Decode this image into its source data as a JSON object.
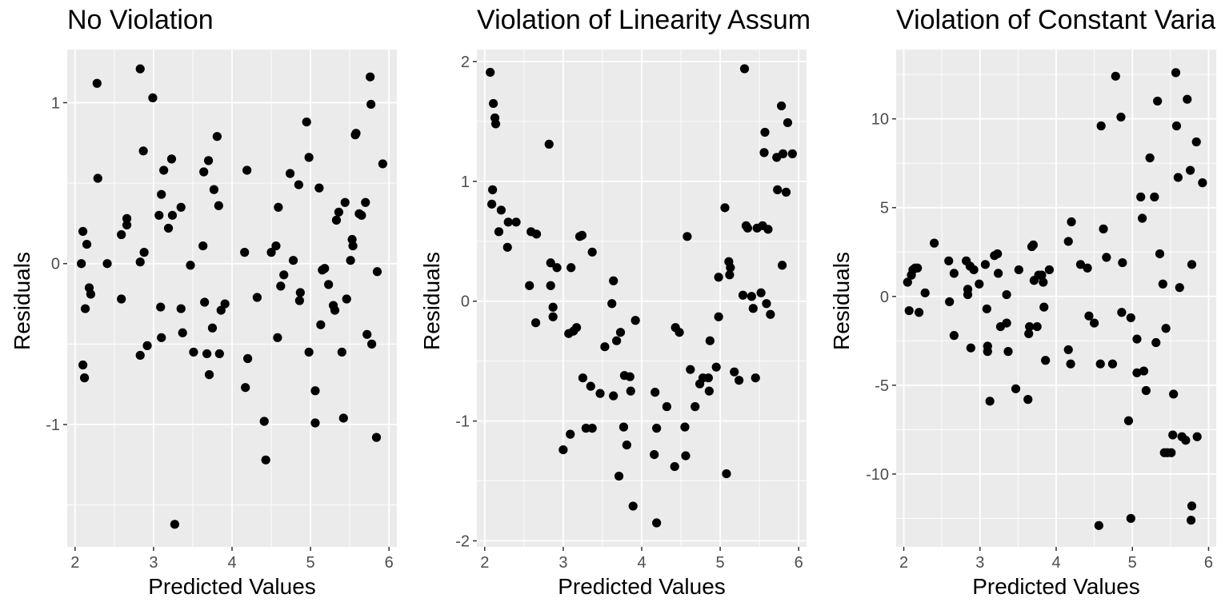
{
  "chart_data": [
    {
      "type": "scatter",
      "title": "No Violation",
      "xlabel": "Predicted Values",
      "ylabel": "Residuals",
      "xlim": [
        1.9,
        6.1
      ],
      "ylim": [
        -1.76,
        1.33
      ],
      "x_ticks": [
        2,
        3,
        4,
        5,
        6
      ],
      "y_ticks": [
        -1,
        0,
        1
      ],
      "grid": true,
      "points": [
        [
          2.08,
          0.0
        ],
        [
          2.1,
          0.2
        ],
        [
          2.1,
          -0.63
        ],
        [
          2.12,
          -0.71
        ],
        [
          2.13,
          -0.28
        ],
        [
          2.15,
          0.12
        ],
        [
          2.18,
          -0.15
        ],
        [
          2.2,
          -0.19
        ],
        [
          2.28,
          1.12
        ],
        [
          2.29,
          0.53
        ],
        [
          2.41,
          0.0
        ],
        [
          2.59,
          0.18
        ],
        [
          2.59,
          -0.22
        ],
        [
          2.66,
          0.28
        ],
        [
          2.66,
          0.24
        ],
        [
          2.83,
          1.21
        ],
        [
          2.83,
          0.01
        ],
        [
          2.83,
          -0.57
        ],
        [
          2.87,
          0.7
        ],
        [
          2.88,
          0.07
        ],
        [
          2.92,
          -0.51
        ],
        [
          2.99,
          1.03
        ],
        [
          3.07,
          0.3
        ],
        [
          3.09,
          -0.27
        ],
        [
          3.1,
          0.43
        ],
        [
          3.1,
          -0.46
        ],
        [
          3.13,
          0.58
        ],
        [
          3.19,
          0.22
        ],
        [
          3.23,
          0.65
        ],
        [
          3.24,
          0.3
        ],
        [
          3.27,
          -1.62
        ],
        [
          3.35,
          0.35
        ],
        [
          3.35,
          -0.28
        ],
        [
          3.37,
          -0.43
        ],
        [
          3.47,
          -0.01
        ],
        [
          3.51,
          -0.55
        ],
        [
          3.63,
          0.11
        ],
        [
          3.64,
          0.57
        ],
        [
          3.65,
          -0.24
        ],
        [
          3.68,
          -0.56
        ],
        [
          3.7,
          0.64
        ],
        [
          3.71,
          -0.69
        ],
        [
          3.75,
          -0.4
        ],
        [
          3.77,
          0.46
        ],
        [
          3.81,
          0.79
        ],
        [
          3.83,
          0.36
        ],
        [
          3.84,
          -0.56
        ],
        [
          3.86,
          -0.29
        ],
        [
          3.91,
          -0.25
        ],
        [
          4.16,
          0.07
        ],
        [
          4.17,
          -0.77
        ],
        [
          4.19,
          0.58
        ],
        [
          4.2,
          -0.59
        ],
        [
          4.32,
          -0.21
        ],
        [
          4.41,
          -0.98
        ],
        [
          4.43,
          -1.22
        ],
        [
          4.5,
          0.07
        ],
        [
          4.56,
          0.11
        ],
        [
          4.58,
          -0.46
        ],
        [
          4.59,
          0.35
        ],
        [
          4.62,
          -0.14
        ],
        [
          4.66,
          -0.07
        ],
        [
          4.74,
          0.56
        ],
        [
          4.78,
          0.02
        ],
        [
          4.85,
          0.49
        ],
        [
          4.86,
          -0.23
        ],
        [
          4.87,
          -0.18
        ],
        [
          4.95,
          0.88
        ],
        [
          4.98,
          0.66
        ],
        [
          4.98,
          -0.55
        ],
        [
          5.06,
          -0.79
        ],
        [
          5.06,
          -0.99
        ],
        [
          5.11,
          0.47
        ],
        [
          5.13,
          -0.38
        ],
        [
          5.15,
          -0.04
        ],
        [
          5.18,
          -0.03
        ],
        [
          5.23,
          -0.13
        ],
        [
          5.29,
          -0.26
        ],
        [
          5.31,
          -0.29
        ],
        [
          5.33,
          0.27
        ],
        [
          5.36,
          0.32
        ],
        [
          5.4,
          -0.55
        ],
        [
          5.42,
          -0.96
        ],
        [
          5.44,
          0.38
        ],
        [
          5.46,
          -0.22
        ],
        [
          5.51,
          0.02
        ],
        [
          5.53,
          0.15
        ],
        [
          5.54,
          0.11
        ],
        [
          5.57,
          0.8
        ],
        [
          5.58,
          0.81
        ],
        [
          5.62,
          0.31
        ],
        [
          5.65,
          0.3
        ],
        [
          5.7,
          0.38
        ],
        [
          5.72,
          -0.44
        ],
        [
          5.76,
          1.16
        ],
        [
          5.77,
          0.99
        ],
        [
          5.78,
          -0.5
        ],
        [
          5.84,
          -1.08
        ],
        [
          5.85,
          -0.05
        ],
        [
          5.92,
          0.62
        ]
      ]
    },
    {
      "type": "scatter",
      "title": "Violation of Linearity Assum",
      "xlabel": "Predicted Values",
      "ylabel": "Residuals",
      "xlim": [
        1.9,
        6.1
      ],
      "ylim": [
        -2.05,
        2.1
      ],
      "x_ticks": [
        2,
        3,
        4,
        5,
        6
      ],
      "y_ticks": [
        -2,
        -1,
        0,
        1,
        2
      ],
      "grid": true,
      "points": [
        [
          2.07,
          1.91
        ],
        [
          2.09,
          0.81
        ],
        [
          2.1,
          0.93
        ],
        [
          2.11,
          1.65
        ],
        [
          2.13,
          1.53
        ],
        [
          2.14,
          1.48
        ],
        [
          2.18,
          0.58
        ],
        [
          2.21,
          0.76
        ],
        [
          2.29,
          0.45
        ],
        [
          2.3,
          0.66
        ],
        [
          2.4,
          0.66
        ],
        [
          2.57,
          0.13
        ],
        [
          2.59,
          0.58
        ],
        [
          2.65,
          -0.18
        ],
        [
          2.66,
          0.56
        ],
        [
          2.82,
          1.31
        ],
        [
          2.84,
          0.32
        ],
        [
          2.84,
          0.13
        ],
        [
          2.87,
          -0.05
        ],
        [
          2.87,
          -0.13
        ],
        [
          2.92,
          0.28
        ],
        [
          3.0,
          -1.24
        ],
        [
          3.07,
          -0.27
        ],
        [
          3.09,
          -1.11
        ],
        [
          3.1,
          0.28
        ],
        [
          3.13,
          -0.25
        ],
        [
          3.17,
          -0.22
        ],
        [
          3.21,
          0.54
        ],
        [
          3.24,
          0.55
        ],
        [
          3.25,
          -0.64
        ],
        [
          3.29,
          -1.06
        ],
        [
          3.35,
          -0.71
        ],
        [
          3.37,
          0.41
        ],
        [
          3.37,
          -1.06
        ],
        [
          3.47,
          -0.77
        ],
        [
          3.53,
          -0.38
        ],
        [
          3.62,
          -0.02
        ],
        [
          3.64,
          0.17
        ],
        [
          3.64,
          -0.79
        ],
        [
          3.68,
          -0.33
        ],
        [
          3.71,
          -1.46
        ],
        [
          3.73,
          -0.26
        ],
        [
          3.77,
          -1.05
        ],
        [
          3.78,
          -0.62
        ],
        [
          3.81,
          -1.2
        ],
        [
          3.85,
          -0.63
        ],
        [
          3.86,
          -0.75
        ],
        [
          3.89,
          -1.71
        ],
        [
          3.92,
          -0.16
        ],
        [
          4.16,
          -1.28
        ],
        [
          4.17,
          -0.76
        ],
        [
          4.19,
          -1.85
        ],
        [
          4.19,
          -1.06
        ],
        [
          4.32,
          -0.88
        ],
        [
          4.42,
          -1.38
        ],
        [
          4.43,
          -0.22
        ],
        [
          4.48,
          -0.26
        ],
        [
          4.55,
          -1.05
        ],
        [
          4.56,
          -1.29
        ],
        [
          4.58,
          0.54
        ],
        [
          4.62,
          -0.57
        ],
        [
          4.68,
          -0.88
        ],
        [
          4.74,
          -0.69
        ],
        [
          4.78,
          -0.64
        ],
        [
          4.85,
          -0.64
        ],
        [
          4.86,
          -0.75
        ],
        [
          4.87,
          -0.33
        ],
        [
          4.95,
          -0.55
        ],
        [
          4.98,
          0.2
        ],
        [
          4.98,
          -0.13
        ],
        [
          5.06,
          0.78
        ],
        [
          5.08,
          -1.44
        ],
        [
          5.11,
          0.33
        ],
        [
          5.12,
          0.22
        ],
        [
          5.13,
          0.28
        ],
        [
          5.18,
          -0.59
        ],
        [
          5.24,
          -0.66
        ],
        [
          5.29,
          0.05
        ],
        [
          5.31,
          1.94
        ],
        [
          5.33,
          0.63
        ],
        [
          5.35,
          0.61
        ],
        [
          5.4,
          0.04
        ],
        [
          5.42,
          -0.06
        ],
        [
          5.45,
          -0.64
        ],
        [
          5.47,
          0.61
        ],
        [
          5.52,
          0.07
        ],
        [
          5.54,
          0.63
        ],
        [
          5.56,
          1.24
        ],
        [
          5.57,
          1.41
        ],
        [
          5.59,
          -0.02
        ],
        [
          5.61,
          0.6
        ],
        [
          5.64,
          -0.11
        ],
        [
          5.72,
          1.2
        ],
        [
          5.73,
          0.93
        ],
        [
          5.78,
          1.63
        ],
        [
          5.79,
          0.3
        ],
        [
          5.8,
          1.23
        ],
        [
          5.84,
          0.91
        ],
        [
          5.86,
          1.49
        ],
        [
          5.92,
          1.23
        ]
      ]
    },
    {
      "type": "scatter",
      "title": "Violation of Constant Varia",
      "xlabel": "Predicted Values",
      "ylabel": "Residuals",
      "xlim": [
        1.9,
        6.1
      ],
      "ylim": [
        -14.1,
        13.9
      ],
      "x_ticks": [
        2,
        3,
        4,
        5,
        6
      ],
      "y_ticks": [
        -10,
        -5,
        0,
        5,
        10
      ],
      "grid": true,
      "points": [
        [
          2.05,
          0.8
        ],
        [
          2.07,
          -0.8
        ],
        [
          2.1,
          1.2
        ],
        [
          2.12,
          1.5
        ],
        [
          2.15,
          1.6
        ],
        [
          2.18,
          1.6
        ],
        [
          2.2,
          -0.9
        ],
        [
          2.28,
          0.2
        ],
        [
          2.4,
          3.0
        ],
        [
          2.59,
          2.0
        ],
        [
          2.6,
          -0.3
        ],
        [
          2.66,
          1.3
        ],
        [
          2.66,
          -2.2
        ],
        [
          2.82,
          2.0
        ],
        [
          2.84,
          0.1
        ],
        [
          2.84,
          0.4
        ],
        [
          2.87,
          1.7
        ],
        [
          2.88,
          -2.9
        ],
        [
          2.92,
          1.5
        ],
        [
          2.99,
          0.7
        ],
        [
          3.07,
          1.8
        ],
        [
          3.09,
          -0.7
        ],
        [
          3.1,
          -3.1
        ],
        [
          3.1,
          -2.8
        ],
        [
          3.13,
          -5.9
        ],
        [
          3.19,
          2.3
        ],
        [
          3.23,
          2.4
        ],
        [
          3.24,
          1.3
        ],
        [
          3.27,
          -1.7
        ],
        [
          3.35,
          -1.5
        ],
        [
          3.35,
          0.1
        ],
        [
          3.37,
          -3.1
        ],
        [
          3.47,
          -5.2
        ],
        [
          3.51,
          1.5
        ],
        [
          3.63,
          -5.8
        ],
        [
          3.64,
          -2.1
        ],
        [
          3.65,
          -1.7
        ],
        [
          3.68,
          2.8
        ],
        [
          3.7,
          2.9
        ],
        [
          3.71,
          0.9
        ],
        [
          3.75,
          -1.7
        ],
        [
          3.77,
          1.2
        ],
        [
          3.81,
          1.2
        ],
        [
          3.83,
          0.8
        ],
        [
          3.84,
          -0.6
        ],
        [
          3.86,
          -3.6
        ],
        [
          3.91,
          1.5
        ],
        [
          4.16,
          -3.0
        ],
        [
          4.16,
          3.1
        ],
        [
          4.19,
          -3.8
        ],
        [
          4.2,
          4.2
        ],
        [
          4.32,
          1.8
        ],
        [
          4.41,
          1.6
        ],
        [
          4.43,
          -1.1
        ],
        [
          4.5,
          -1.5
        ],
        [
          4.56,
          -12.9
        ],
        [
          4.58,
          -3.8
        ],
        [
          4.59,
          9.6
        ],
        [
          4.62,
          3.8
        ],
        [
          4.66,
          2.2
        ],
        [
          4.74,
          -3.8
        ],
        [
          4.78,
          12.4
        ],
        [
          4.85,
          10.1
        ],
        [
          4.86,
          -0.9
        ],
        [
          4.87,
          1.9
        ],
        [
          4.95,
          -7.0
        ],
        [
          4.98,
          -1.2
        ],
        [
          4.98,
          -12.5
        ],
        [
          5.06,
          -4.3
        ],
        [
          5.06,
          -2.4
        ],
        [
          5.11,
          5.6
        ],
        [
          5.13,
          4.4
        ],
        [
          5.15,
          -4.2
        ],
        [
          5.18,
          -5.3
        ],
        [
          5.23,
          7.8
        ],
        [
          5.29,
          5.6
        ],
        [
          5.31,
          -2.6
        ],
        [
          5.33,
          11.0
        ],
        [
          5.36,
          2.4
        ],
        [
          5.4,
          0.7
        ],
        [
          5.42,
          -8.8
        ],
        [
          5.44,
          -1.8
        ],
        [
          5.46,
          -8.8
        ],
        [
          5.51,
          -8.8
        ],
        [
          5.53,
          -7.8
        ],
        [
          5.54,
          -5.5
        ],
        [
          5.57,
          12.6
        ],
        [
          5.58,
          9.6
        ],
        [
          5.6,
          6.7
        ],
        [
          5.62,
          0.5
        ],
        [
          5.65,
          -7.9
        ],
        [
          5.7,
          -8.1
        ],
        [
          5.72,
          11.1
        ],
        [
          5.76,
          7.1
        ],
        [
          5.77,
          -12.6
        ],
        [
          5.78,
          -11.8
        ],
        [
          5.78,
          1.8
        ],
        [
          5.84,
          8.7
        ],
        [
          5.85,
          -7.9
        ],
        [
          5.92,
          6.4
        ]
      ]
    }
  ]
}
